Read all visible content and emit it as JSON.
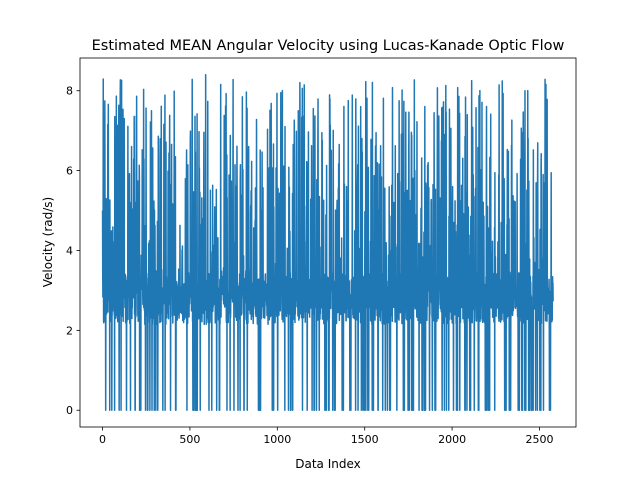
{
  "chart_data": {
    "type": "line",
    "title": "Estimated MEAN Angular Velocity using Lucas-Kanade Optic Flow",
    "xlabel": "Data Index",
    "ylabel": "Velocity (rad/s)",
    "xlim": [
      -129,
      2709
    ],
    "ylim": [
      -0.42,
      8.82
    ],
    "xticks": [
      0,
      500,
      1000,
      1500,
      2000,
      2500
    ],
    "yticks": [
      0,
      2,
      4,
      6,
      8
    ],
    "grid": false,
    "series_color": "#1f77b4",
    "n_points": 2579,
    "value_range": [
      0,
      8.4
    ],
    "baseline_level": 2.8
  }
}
